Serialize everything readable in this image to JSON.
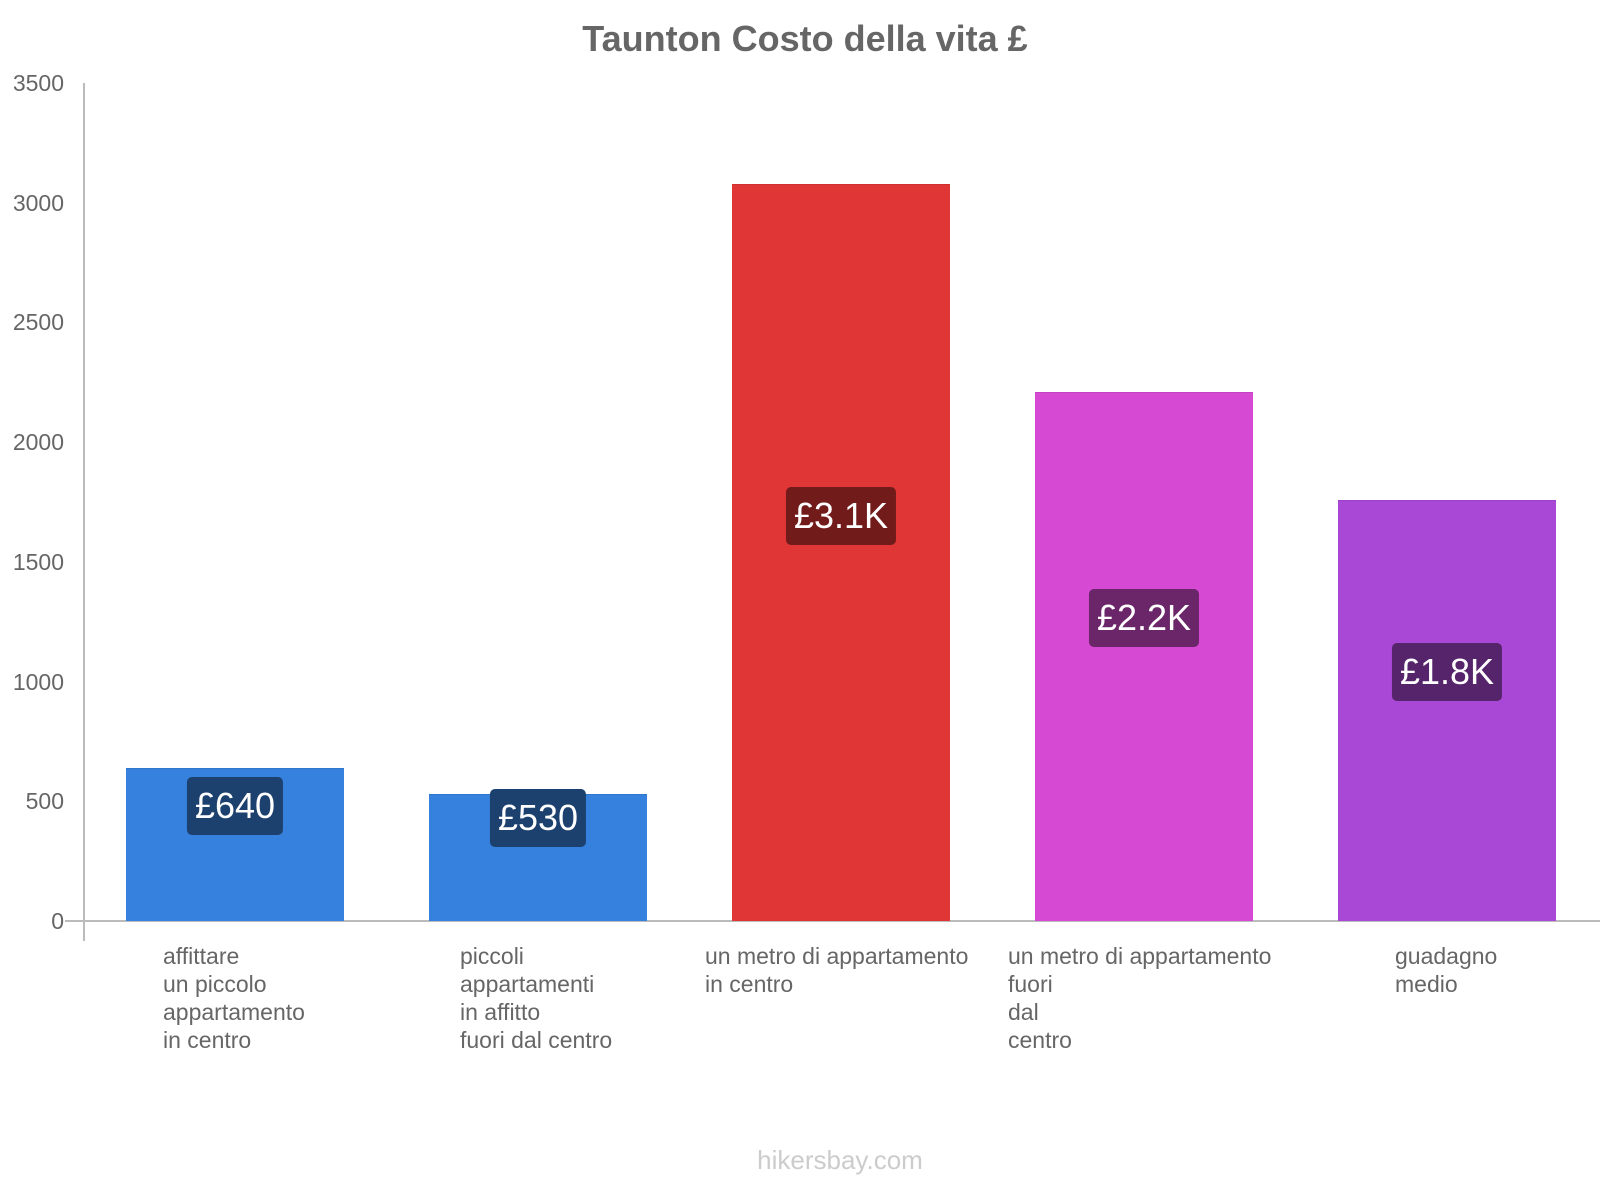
{
  "chart_data": {
    "type": "bar",
    "title": "Taunton Costo della vita £",
    "xlabel": "",
    "ylabel": "",
    "ylim": [
      0,
      3500
    ],
    "yticks": [
      0,
      500,
      1000,
      1500,
      2000,
      2500,
      3000,
      3500
    ],
    "grid": false,
    "legend": null,
    "categories": [
      "affittare un piccolo appartamento in centro",
      "piccoli appartamenti in affitto fuori dal centro",
      "un metro di appartamento in centro",
      "un metro di appartamento fuori dal centro",
      "guadagno medio"
    ],
    "category_lines": [
      [
        "affittare",
        "un piccolo",
        "appartamento",
        "in centro"
      ],
      [
        "piccoli",
        "appartamenti",
        "in affitto",
        "fuori dal centro"
      ],
      [
        "un metro di appartamento",
        "in centro"
      ],
      [
        "un metro di appartamento",
        "fuori",
        "dal",
        "centro"
      ],
      [
        "guadagno",
        "medio"
      ]
    ],
    "values": [
      640,
      530,
      3080,
      2210,
      1760
    ],
    "data_labels": [
      "£640",
      "£530",
      "£3.1K",
      "£2.2K",
      "£1.8K"
    ],
    "colors": [
      "#3581dd",
      "#3581dd",
      "#e03636",
      "#d649d3",
      "#a947d6"
    ],
    "label_bg_colors": [
      "#1d416f",
      "#1d416f",
      "#721b1b",
      "#6b2569",
      "#55246b"
    ],
    "annotations": [
      "hikersbay.com"
    ]
  },
  "footer": {
    "watermark": "hikersbay.com"
  }
}
